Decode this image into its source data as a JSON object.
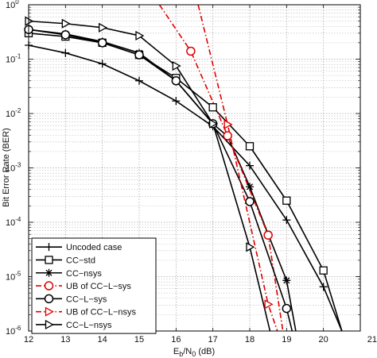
{
  "chart_data": {
    "type": "line",
    "title": "",
    "xlabel": "E_b/N_0 (dB)",
    "ylabel": "Bit Error Rate (BER)",
    "x_scale": "linear",
    "y_scale": "log",
    "xlim": [
      12,
      21
    ],
    "ylim": [
      1e-06,
      1
    ],
    "grid": true,
    "legend_position": "lower-left",
    "x_ticks": [
      {
        "value": 12,
        "label": "12"
      },
      {
        "value": 13,
        "label": "13"
      },
      {
        "value": 14,
        "label": "14"
      },
      {
        "value": 15,
        "label": "15"
      },
      {
        "value": 16,
        "label": "16"
      },
      {
        "value": 17,
        "label": "17"
      },
      {
        "value": 18,
        "label": "18"
      },
      {
        "value": 19,
        "label": "19"
      },
      {
        "value": 20,
        "label": "20"
      },
      {
        "value": 21,
        "label": "21"
      }
    ],
    "y_ticks": [
      {
        "value": 1,
        "base": "10",
        "exp": "0"
      },
      {
        "value": 0.1,
        "base": "10",
        "exp": "-1"
      },
      {
        "value": 0.01,
        "base": "10",
        "exp": "-2"
      },
      {
        "value": 0.001,
        "base": "10",
        "exp": "-3"
      },
      {
        "value": 0.0001,
        "base": "10",
        "exp": "-4"
      },
      {
        "value": 1e-05,
        "base": "10",
        "exp": "-5"
      },
      {
        "value": 1e-06,
        "base": "10",
        "exp": "-6"
      }
    ],
    "series": [
      {
        "name": "Uncoded case",
        "color": "#000000",
        "dash": "solid",
        "marker": "plus",
        "x": [
          12,
          13,
          14,
          15,
          16,
          17,
          18,
          19,
          20
        ],
        "y": [
          0.18,
          0.13,
          0.082,
          0.04,
          0.017,
          0.0058,
          0.0011,
          0.00011,
          6.5e-06
        ],
        "curve_x": [
          12,
          13,
          14,
          15,
          16,
          17,
          18,
          19,
          20,
          20.5
        ],
        "curve_y": [
          0.18,
          0.13,
          0.082,
          0.04,
          0.017,
          0.0058,
          0.0011,
          0.00011,
          6.5e-06,
          1e-06
        ]
      },
      {
        "name": "CC−std",
        "color": "#000000",
        "dash": "solid",
        "marker": "square",
        "x": [
          12,
          13,
          14,
          15,
          16,
          17,
          18,
          19,
          20
        ],
        "y": [
          0.3,
          0.26,
          0.2,
          0.12,
          0.045,
          0.013,
          0.0025,
          0.00025,
          1.3e-05
        ],
        "curve_x": [
          12,
          13,
          14,
          15,
          16,
          17,
          18,
          19,
          20,
          20.5
        ],
        "curve_y": [
          0.3,
          0.26,
          0.2,
          0.12,
          0.045,
          0.013,
          0.0025,
          0.00025,
          1.3e-05,
          1e-06
        ]
      },
      {
        "name": "CC−nsys",
        "color": "#000000",
        "dash": "solid",
        "marker": "asterisk",
        "x": [
          12,
          13,
          14,
          15,
          16,
          17,
          17.4,
          18,
          18.5,
          19
        ],
        "y": [
          0.35,
          0.29,
          0.21,
          0.13,
          0.04,
          0.0065,
          0.0038,
          0.00045,
          6e-05,
          8.5e-06
        ],
        "curve_x": [
          12,
          13,
          14,
          15,
          16,
          17,
          17.4,
          18,
          18.5,
          19,
          19.25
        ],
        "curve_y": [
          0.35,
          0.29,
          0.21,
          0.13,
          0.04,
          0.0065,
          0.0038,
          0.00045,
          6e-05,
          8.5e-06,
          1e-06
        ]
      },
      {
        "name": "UB of CC−L−sys",
        "color": "#dd0000",
        "dash": "dashdot",
        "marker": "circle",
        "x": [
          16.4,
          17.4,
          18.5
        ],
        "y": [
          0.14,
          0.0039,
          5.8e-05
        ],
        "curve_x": [
          15.55,
          16.4,
          17.4,
          18.5,
          18.9
        ],
        "curve_y": [
          1,
          0.14,
          0.0039,
          5.8e-05,
          1e-06
        ]
      },
      {
        "name": "CC−L−sys",
        "color": "#000000",
        "dash": "solid",
        "marker": "circle",
        "x": [
          12,
          13,
          14,
          15,
          16,
          17,
          18,
          19
        ],
        "y": [
          0.35,
          0.28,
          0.2,
          0.12,
          0.04,
          0.0065,
          0.00024,
          2.6e-06
        ],
        "curve_x": [
          12,
          13,
          14,
          15,
          16,
          17,
          18,
          19,
          19.15
        ],
        "curve_y": [
          0.35,
          0.28,
          0.2,
          0.12,
          0.04,
          0.0065,
          0.00024,
          2.6e-06,
          1e-06
        ]
      },
      {
        "name": "UB of CC−L−nsys",
        "color": "#dd0000",
        "dash": "dashdot",
        "marker": "triangle-right",
        "x": [
          17.4,
          18.5
        ],
        "y": [
          0.0063,
          3.1e-06
        ],
        "curve_x": [
          16.6,
          17.4,
          18.5,
          18.75
        ],
        "curve_y": [
          1,
          0.0063,
          3.1e-06,
          1e-06
        ]
      },
      {
        "name": "CC−L−nsys",
        "color": "#000000",
        "dash": "solid",
        "marker": "triangle-right",
        "x": [
          12,
          13,
          14,
          15,
          16,
          17,
          18
        ],
        "y": [
          0.5,
          0.45,
          0.38,
          0.27,
          0.075,
          0.0065,
          3.5e-05
        ],
        "curve_x": [
          12,
          13,
          14,
          15,
          16,
          17,
          18,
          18.55
        ],
        "curve_y": [
          0.5,
          0.45,
          0.38,
          0.27,
          0.075,
          0.0065,
          3.5e-05,
          1e-06
        ]
      }
    ]
  }
}
